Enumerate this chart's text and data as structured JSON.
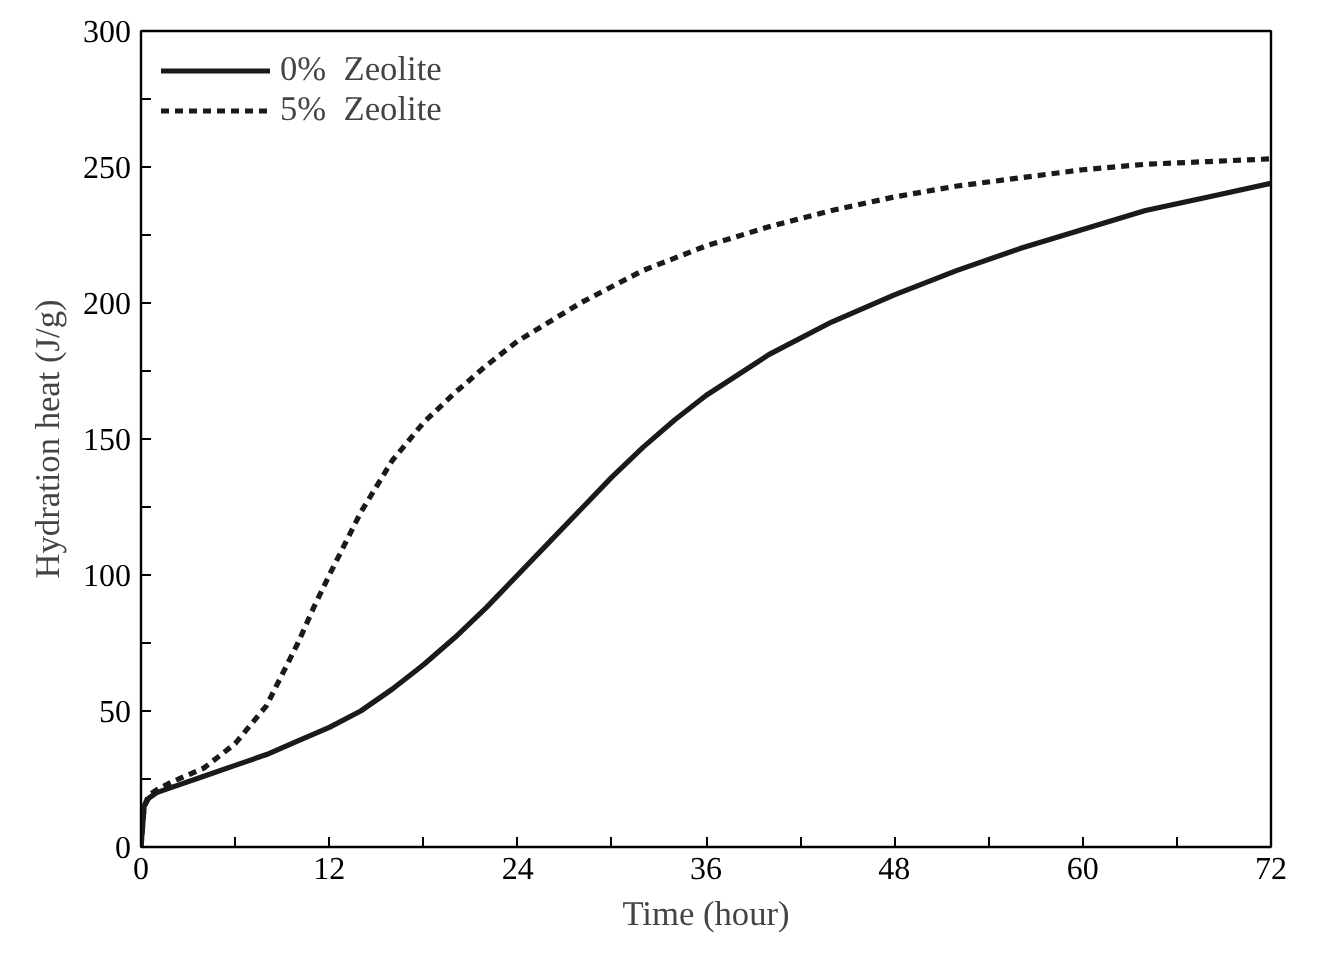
{
  "chart_data": {
    "type": "line",
    "xlabel": "Time (hour)",
    "ylabel": "Hydration heat (J/g)",
    "xlim": [
      0,
      72
    ],
    "ylim": [
      0,
      300
    ],
    "xticks": [
      0,
      {
        "value": 6,
        "label": null
      },
      12,
      {
        "value": 18,
        "label": null
      },
      24,
      {
        "value": 30,
        "label": null
      },
      36,
      {
        "value": 42,
        "label": null
      },
      48,
      {
        "value": 54,
        "label": null
      },
      60,
      {
        "value": 66,
        "label": null
      },
      72
    ],
    "yticks": [
      0,
      {
        "value": 25,
        "label": null
      },
      50,
      {
        "value": 75,
        "label": null
      },
      100,
      {
        "value": 125,
        "label": null
      },
      150,
      {
        "value": 175,
        "label": null
      },
      200,
      {
        "value": 225,
        "label": null
      },
      250,
      {
        "value": 275,
        "label": null
      },
      300
    ],
    "grid": false,
    "legend": "top left",
    "marker": "none",
    "series": [
      {
        "name": "0%  Zeolite",
        "color": "#1a1a1a",
        "line_style": "solid",
        "x": [
          0,
          0.2,
          0.5,
          1,
          2,
          4,
          6,
          8,
          10,
          12,
          14,
          16,
          18,
          20,
          22,
          24,
          26,
          28,
          30,
          32,
          34,
          36,
          40,
          44,
          48,
          52,
          56,
          60,
          64,
          68,
          72
        ],
        "values": [
          0,
          15,
          18,
          20,
          22,
          26,
          30,
          34,
          39,
          44,
          50,
          58,
          67,
          77,
          88,
          100,
          112,
          124,
          136,
          147,
          157,
          166,
          181,
          193,
          203,
          212,
          220,
          227,
          234,
          239,
          244
        ]
      },
      {
        "name": "5%  Zeolite",
        "color": "#1a1a1a",
        "line_style": "dashed",
        "x": [
          0,
          0.2,
          0.5,
          1,
          2,
          4,
          6,
          8,
          10,
          11,
          12,
          14,
          16,
          18,
          20,
          22,
          24,
          28,
          32,
          36,
          40,
          44,
          48,
          52,
          56,
          60,
          64,
          68,
          72
        ],
        "values": [
          0,
          15,
          19,
          21,
          24,
          29,
          38,
          52,
          75,
          88,
          100,
          123,
          142,
          156,
          167,
          177,
          186,
          200,
          212,
          221,
          228,
          234,
          239,
          243,
          246,
          249,
          251,
          252,
          253
        ]
      }
    ]
  }
}
